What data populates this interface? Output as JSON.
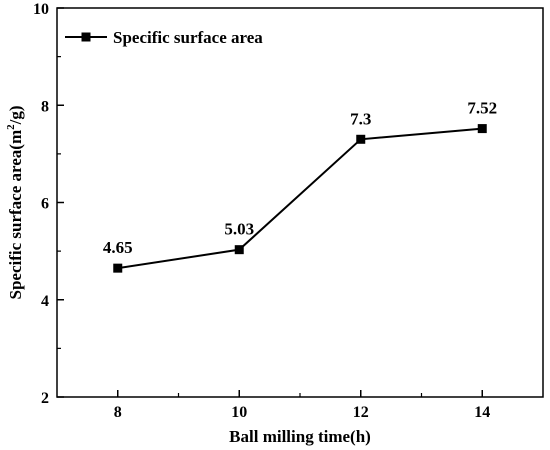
{
  "chart_data": {
    "type": "line",
    "title": "",
    "xlabel": "Ball milling time(h)",
    "ylabel_main": "Specific surface area(m",
    "ylabel_sup": "2",
    "ylabel_tail": "/g)",
    "xlim": [
      7,
      15
    ],
    "ylim": [
      2,
      10
    ],
    "x_ticks": [
      8,
      10,
      12,
      14
    ],
    "y_ticks": [
      2,
      4,
      6,
      8,
      10
    ],
    "grid": false,
    "legend_position": "top-left",
    "series": [
      {
        "name": "Specific surface area",
        "x": [
          8,
          10,
          12,
          14
        ],
        "y": [
          4.65,
          5.03,
          7.3,
          7.52
        ],
        "data_labels": [
          "4.65",
          "5.03",
          "7.3",
          "7.52"
        ],
        "color": "#000000",
        "marker": "square"
      }
    ]
  }
}
